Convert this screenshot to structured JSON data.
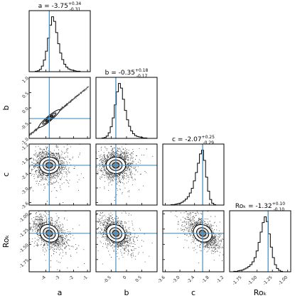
{
  "chart_data": {
    "type": "corner",
    "parameters": [
      {
        "name": "a",
        "title": "a = -3.75",
        "sup": "+0.34",
        "sub": "-0.31",
        "truth": -3.75,
        "range": [
          -5.2,
          -0.8
        ],
        "ticks": [
          -4,
          -3,
          -2,
          -1
        ],
        "tick_labels": [
          "-4",
          "-3",
          "-2",
          "-1"
        ],
        "hist": [
          0,
          0,
          0,
          1,
          2,
          5,
          12,
          25,
          44,
          72,
          100,
          118,
          108,
          84,
          60,
          40,
          26,
          16,
          10,
          6,
          4,
          3,
          2,
          1,
          1,
          0,
          0,
          0,
          0,
          0
        ]
      },
      {
        "name": "b",
        "title": "b = -0.35",
        "sup": "+0.18",
        "sub": "-0.17",
        "truth": -0.35,
        "range": [
          -1.0,
          1.0
        ],
        "ticks": [
          -0.5,
          0,
          0.5
        ],
        "tick_labels": [
          "-0.5",
          "0",
          "0.5"
        ],
        "hist": [
          0,
          0,
          0,
          1,
          2,
          5,
          12,
          25,
          44,
          72,
          100,
          118,
          108,
          84,
          60,
          40,
          26,
          16,
          10,
          6,
          4,
          3,
          2,
          1,
          1,
          0,
          0,
          0,
          0,
          0
        ]
      },
      {
        "name": "c",
        "title": "c = -2.07",
        "sup": "+0.25",
        "sub": "-0.29",
        "truth": -2.07,
        "range": [
          -3.7,
          -1.2
        ],
        "ticks": [
          -3.6,
          -3.0,
          -2.4,
          -1.8,
          -1.2
        ],
        "tick_labels": [
          "-3.6",
          "-3.0",
          "-2.4",
          "-1.8",
          "-1.2"
        ],
        "hist": [
          0,
          0,
          0,
          0,
          1,
          1,
          2,
          3,
          4,
          6,
          9,
          13,
          18,
          26,
          36,
          52,
          70,
          90,
          110,
          118,
          96,
          60,
          30,
          12,
          4,
          1,
          0,
          0,
          0,
          0
        ]
      },
      {
        "name": "Roₖ",
        "title": "Roₖ = -1.32",
        "sup": "+0.10",
        "sub": "-0.10",
        "truth": -1.32,
        "range": [
          -1.95,
          -0.95
        ],
        "ticks": [
          -1.75,
          -1.5,
          -1.25,
          -1.0
        ],
        "tick_labels": [
          "-1.75",
          "-1.50",
          "-1.25",
          "-1.00"
        ],
        "hist": [
          0,
          0,
          1,
          1,
          2,
          3,
          4,
          6,
          8,
          11,
          15,
          21,
          30,
          44,
          62,
          84,
          104,
          116,
          106,
          80,
          52,
          30,
          15,
          7,
          3,
          1,
          0,
          0,
          0,
          0
        ]
      }
    ],
    "row_tick_labels": {
      "b": [
        "-1.0",
        "-0.5",
        "0.0",
        "0.5",
        "1.0"
      ],
      "c": [
        "-3.6",
        "-3.0",
        "-2.4",
        "-1.8",
        "-1.2"
      ],
      "Roₖ": [
        "-1.75",
        "-1.50",
        "-1.25",
        "-1.00"
      ]
    },
    "row_ticks": {
      "b": [
        -1.0,
        -0.5,
        0.0,
        0.5,
        1.0
      ],
      "c": [
        -3.6,
        -3.0,
        -2.4,
        -1.8,
        -1.2
      ],
      "Roₖ": [
        -1.75,
        -1.5,
        -1.25,
        -1.0
      ]
    },
    "pair_shapes": {
      "b|a": {
        "kind": "correlated",
        "corr": 0.97
      },
      "c|a": {
        "kind": "blob",
        "corr": 0.0
      },
      "c|b": {
        "kind": "blob",
        "corr": 0.0
      },
      "Roₖ|a": {
        "kind": "blob",
        "corr": -0.45
      },
      "Roₖ|b": {
        "kind": "blob",
        "corr": -0.45
      },
      "Roₖ|c": {
        "kind": "blob",
        "corr": -0.6
      }
    },
    "colors": {
      "truth": "#4a90c2",
      "hist": "#000000",
      "points": "#000000"
    },
    "grid": false
  }
}
